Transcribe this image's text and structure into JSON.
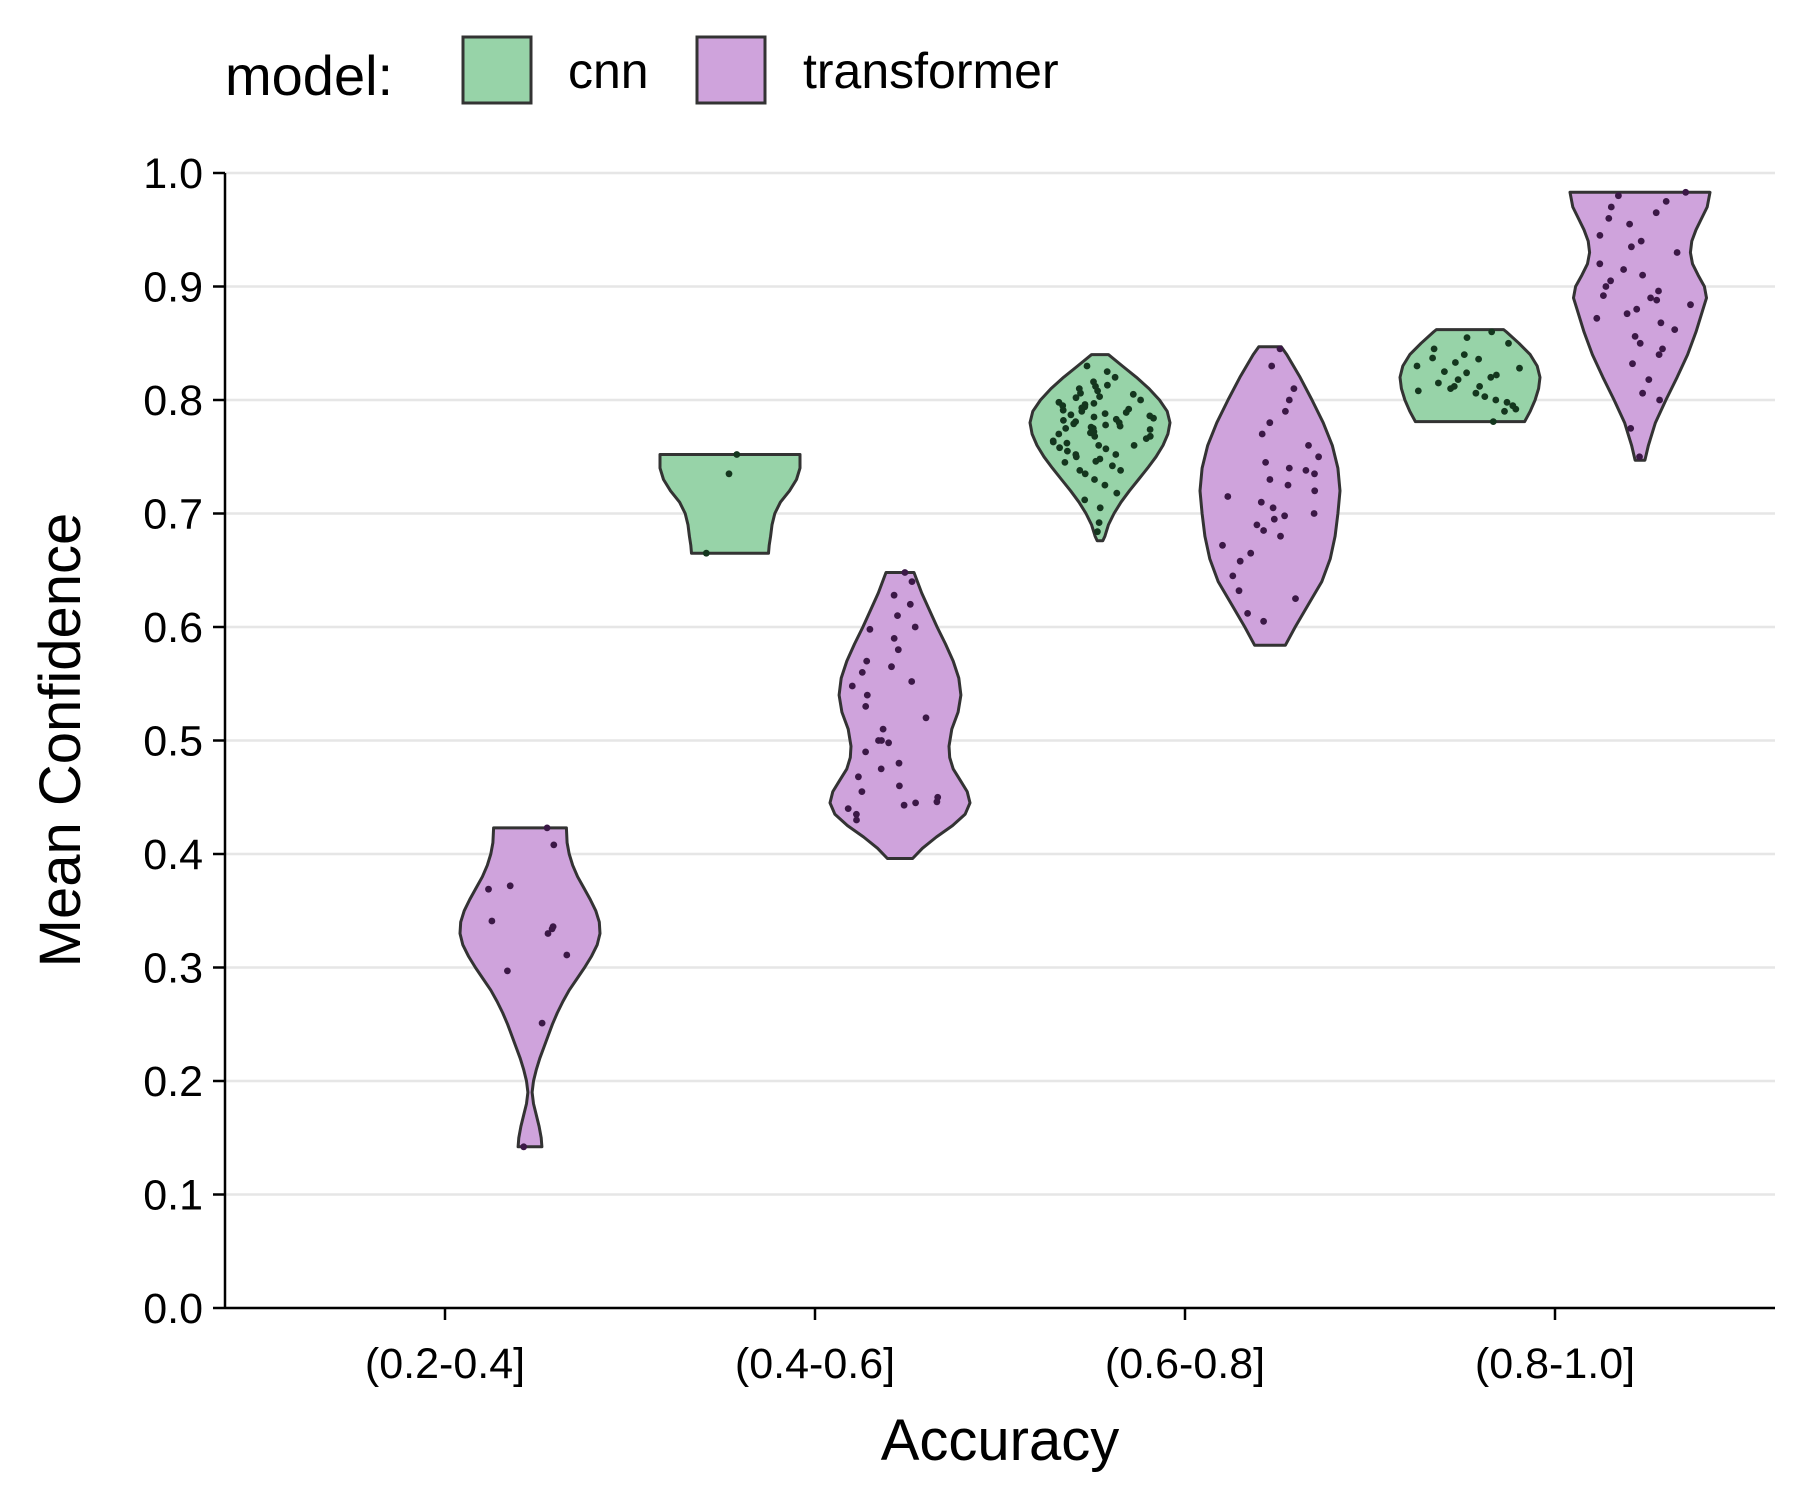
{
  "chart_data": {
    "type": "violin",
    "title": "",
    "xlabel": "Accuracy",
    "ylabel": "Mean Confidence",
    "categories": [
      "(0.2-0.4]",
      "(0.4-0.6]",
      "(0.6-0.8]",
      "(0.8-1.0]"
    ],
    "ylim": [
      0.0,
      1.0
    ],
    "yticks": [
      "0.0",
      "0.1",
      "0.2",
      "0.3",
      "0.4",
      "0.5",
      "0.6",
      "0.7",
      "0.8",
      "0.9",
      "1.0"
    ],
    "grid": "horizontal",
    "legend": {
      "title": "model:",
      "position": "top",
      "entries": [
        {
          "name": "cnn",
          "color": "#97d3a8"
        },
        {
          "name": "transformer",
          "color": "#cfa3dc"
        }
      ]
    },
    "series": [
      {
        "name": "cnn",
        "color": "#97d3a8",
        "point_color": "#14361e",
        "groups": [
          {
            "category": "(0.4-0.6]",
            "min": 0.665,
            "max": 0.752,
            "profile": [
              [
                0.665,
                0.55
              ],
              [
                0.672,
                0.56
              ],
              [
                0.68,
                0.58
              ],
              [
                0.69,
                0.6
              ],
              [
                0.7,
                0.64
              ],
              [
                0.71,
                0.72
              ],
              [
                0.72,
                0.85
              ],
              [
                0.73,
                0.95
              ],
              [
                0.74,
                1.0
              ],
              [
                0.752,
                1.0
              ]
            ],
            "points": [
              0.735,
              0.752,
              0.665
            ]
          },
          {
            "category": "(0.6-0.8]",
            "min": 0.676,
            "max": 0.84,
            "profile": [
              [
                0.676,
                0.04
              ],
              [
                0.68,
                0.07
              ],
              [
                0.69,
                0.12
              ],
              [
                0.7,
                0.2
              ],
              [
                0.71,
                0.3
              ],
              [
                0.72,
                0.42
              ],
              [
                0.73,
                0.55
              ],
              [
                0.74,
                0.68
              ],
              [
                0.75,
                0.8
              ],
              [
                0.76,
                0.9
              ],
              [
                0.77,
                0.97
              ],
              [
                0.78,
                1.0
              ],
              [
                0.79,
                0.96
              ],
              [
                0.8,
                0.85
              ],
              [
                0.81,
                0.7
              ],
              [
                0.82,
                0.52
              ],
              [
                0.83,
                0.32
              ],
              [
                0.84,
                0.12
              ]
            ],
            "points": [
              0.684,
              0.692,
              0.705,
              0.712,
              0.718,
              0.725,
              0.73,
              0.735,
              0.738,
              0.742,
              0.745,
              0.748,
              0.75,
              0.752,
              0.755,
              0.757,
              0.76,
              0.762,
              0.764,
              0.766,
              0.768,
              0.77,
              0.772,
              0.774,
              0.775,
              0.776,
              0.778,
              0.78,
              0.781,
              0.782,
              0.784,
              0.785,
              0.787,
              0.788,
              0.79,
              0.791,
              0.792,
              0.794,
              0.796,
              0.798,
              0.8,
              0.802,
              0.805,
              0.808,
              0.81,
              0.813,
              0.816,
              0.82,
              0.825,
              0.83,
              0.738,
              0.746,
              0.758,
              0.763,
              0.771,
              0.777,
              0.783,
              0.786,
              0.793,
              0.797,
              0.803,
              0.812,
              0.76,
              0.768,
              0.775,
              0.779,
              0.752,
              0.789,
              0.795,
              0.806
            ]
          },
          {
            "category": "(0.8-1.0]",
            "min": 0.781,
            "max": 0.862,
            "profile": [
              [
                0.781,
                0.78
              ],
              [
                0.79,
                0.86
              ],
              [
                0.8,
                0.93
              ],
              [
                0.81,
                0.98
              ],
              [
                0.82,
                1.0
              ],
              [
                0.83,
                0.96
              ],
              [
                0.84,
                0.86
              ],
              [
                0.85,
                0.7
              ],
              [
                0.86,
                0.52
              ],
              [
                0.862,
                0.48
              ]
            ],
            "points": [
              0.781,
              0.79,
              0.792,
              0.795,
              0.798,
              0.8,
              0.803,
              0.806,
              0.808,
              0.81,
              0.812,
              0.815,
              0.818,
              0.82,
              0.822,
              0.825,
              0.828,
              0.83,
              0.833,
              0.836,
              0.84,
              0.845,
              0.85,
              0.855,
              0.86,
              0.812,
              0.824,
              0.837
            ]
          }
        ]
      },
      {
        "name": "transformer",
        "color": "#cfa3dc",
        "point_color": "#3b1846",
        "groups": [
          {
            "category": "(0.2-0.4]",
            "min": 0.142,
            "max": 0.423,
            "profile": [
              [
                0.142,
                0.17
              ],
              [
                0.15,
                0.16
              ],
              [
                0.16,
                0.13
              ],
              [
                0.17,
                0.09
              ],
              [
                0.18,
                0.05
              ],
              [
                0.19,
                0.03
              ],
              [
                0.2,
                0.05
              ],
              [
                0.21,
                0.09
              ],
              [
                0.22,
                0.14
              ],
              [
                0.23,
                0.2
              ],
              [
                0.24,
                0.26
              ],
              [
                0.25,
                0.32
              ],
              [
                0.26,
                0.39
              ],
              [
                0.27,
                0.47
              ],
              [
                0.28,
                0.56
              ],
              [
                0.29,
                0.67
              ],
              [
                0.3,
                0.78
              ],
              [
                0.31,
                0.88
              ],
              [
                0.32,
                0.96
              ],
              [
                0.33,
                1.0
              ],
              [
                0.34,
                0.99
              ],
              [
                0.35,
                0.94
              ],
              [
                0.36,
                0.86
              ],
              [
                0.37,
                0.77
              ],
              [
                0.38,
                0.68
              ],
              [
                0.39,
                0.61
              ],
              [
                0.4,
                0.56
              ],
              [
                0.41,
                0.53
              ],
              [
                0.423,
                0.52
              ]
            ],
            "points": [
              0.423,
              0.408,
              0.372,
              0.369,
              0.341,
              0.336,
              0.334,
              0.33,
              0.311,
              0.297,
              0.251,
              0.142
            ]
          },
          {
            "category": "(0.4-0.6]",
            "min": 0.396,
            "max": 0.648,
            "profile": [
              [
                0.396,
                0.18
              ],
              [
                0.405,
                0.32
              ],
              [
                0.415,
                0.52
              ],
              [
                0.425,
                0.75
              ],
              [
                0.435,
                0.93
              ],
              [
                0.445,
                1.0
              ],
              [
                0.455,
                0.96
              ],
              [
                0.465,
                0.86
              ],
              [
                0.475,
                0.76
              ],
              [
                0.485,
                0.71
              ],
              [
                0.495,
                0.7
              ],
              [
                0.51,
                0.74
              ],
              [
                0.525,
                0.83
              ],
              [
                0.54,
                0.87
              ],
              [
                0.555,
                0.84
              ],
              [
                0.57,
                0.76
              ],
              [
                0.585,
                0.65
              ],
              [
                0.6,
                0.53
              ],
              [
                0.615,
                0.42
              ],
              [
                0.63,
                0.31
              ],
              [
                0.648,
                0.2
              ]
            ],
            "points": [
              0.43,
              0.435,
              0.44,
              0.443,
              0.446,
              0.45,
              0.455,
              0.46,
              0.468,
              0.475,
              0.48,
              0.49,
              0.498,
              0.5,
              0.51,
              0.52,
              0.53,
              0.54,
              0.548,
              0.552,
              0.56,
              0.565,
              0.57,
              0.58,
              0.59,
              0.598,
              0.6,
              0.61,
              0.62,
              0.628,
              0.64,
              0.648,
              0.445,
              0.5
            ]
          },
          {
            "category": "(0.6-0.8]",
            "min": 0.584,
            "max": 0.847,
            "profile": [
              [
                0.584,
                0.22
              ],
              [
                0.6,
                0.36
              ],
              [
                0.62,
                0.55
              ],
              [
                0.64,
                0.74
              ],
              [
                0.66,
                0.86
              ],
              [
                0.68,
                0.93
              ],
              [
                0.7,
                0.97
              ],
              [
                0.72,
                1.0
              ],
              [
                0.74,
                0.97
              ],
              [
                0.76,
                0.89
              ],
              [
                0.78,
                0.76
              ],
              [
                0.8,
                0.6
              ],
              [
                0.82,
                0.43
              ],
              [
                0.84,
                0.24
              ],
              [
                0.847,
                0.16
              ]
            ],
            "points": [
              0.605,
              0.612,
              0.625,
              0.632,
              0.645,
              0.658,
              0.665,
              0.672,
              0.68,
              0.685,
              0.69,
              0.695,
              0.7,
              0.705,
              0.71,
              0.715,
              0.72,
              0.725,
              0.73,
              0.735,
              0.74,
              0.745,
              0.75,
              0.76,
              0.77,
              0.78,
              0.79,
              0.8,
              0.81,
              0.83,
              0.845,
              0.698,
              0.738
            ]
          },
          {
            "category": "(0.8-1.0]",
            "min": 0.747,
            "max": 0.983,
            "profile": [
              [
                0.747,
                0.07
              ],
              [
                0.76,
                0.12
              ],
              [
                0.78,
                0.22
              ],
              [
                0.8,
                0.37
              ],
              [
                0.82,
                0.53
              ],
              [
                0.84,
                0.68
              ],
              [
                0.86,
                0.8
              ],
              [
                0.88,
                0.9
              ],
              [
                0.89,
                0.95
              ],
              [
                0.9,
                0.92
              ],
              [
                0.91,
                0.83
              ],
              [
                0.92,
                0.75
              ],
              [
                0.93,
                0.72
              ],
              [
                0.94,
                0.74
              ],
              [
                0.95,
                0.8
              ],
              [
                0.96,
                0.88
              ],
              [
                0.97,
                0.96
              ],
              [
                0.983,
                1.0
              ]
            ],
            "points": [
              0.75,
              0.775,
              0.8,
              0.806,
              0.818,
              0.832,
              0.84,
              0.845,
              0.85,
              0.856,
              0.862,
              0.868,
              0.872,
              0.876,
              0.88,
              0.884,
              0.888,
              0.892,
              0.896,
              0.9,
              0.905,
              0.91,
              0.915,
              0.92,
              0.93,
              0.94,
              0.945,
              0.955,
              0.96,
              0.965,
              0.97,
              0.975,
              0.98,
              0.983,
              0.89,
              0.935
            ]
          }
        ]
      }
    ]
  }
}
